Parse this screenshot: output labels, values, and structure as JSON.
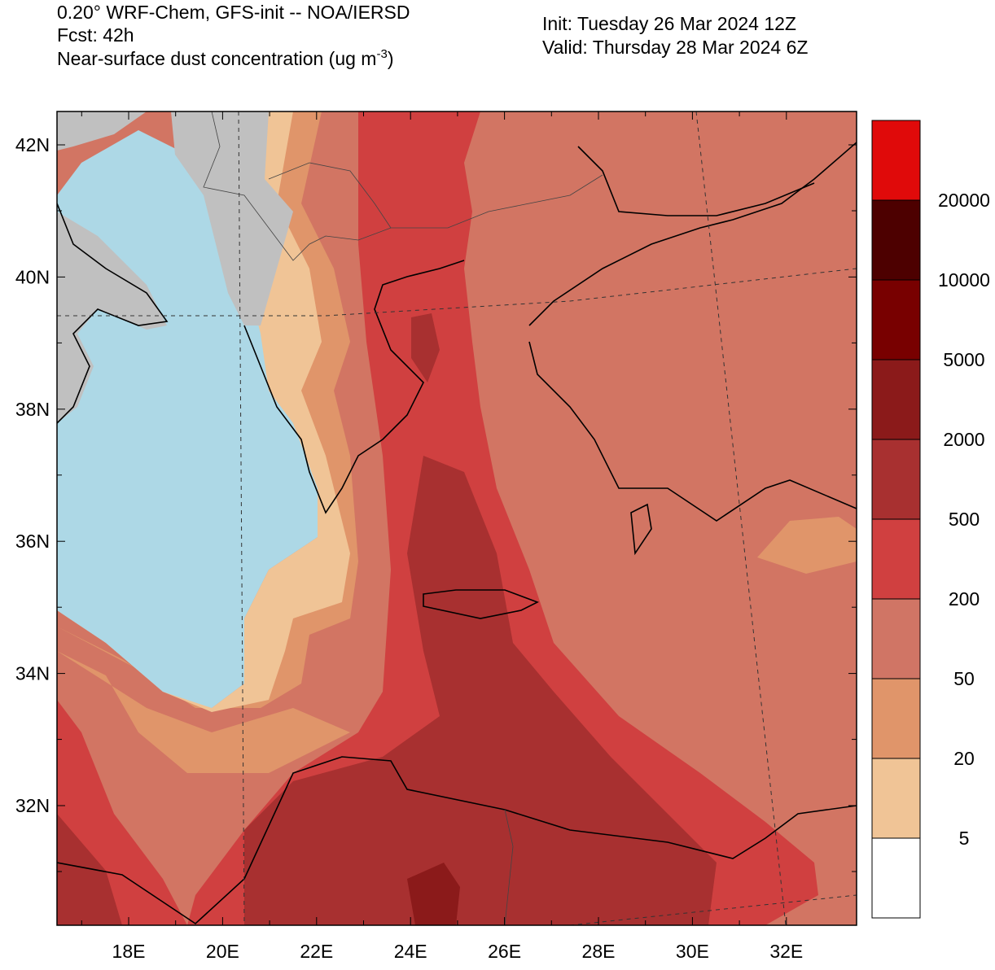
{
  "header": {
    "line1": "0.20° WRF-Chem, GFS-init -- NOA/IERSD",
    "line2": "Fcst: 42h",
    "line3": "Near-surface dust concentration (ug m",
    "line3_sup": "-3",
    "line3_end": ")",
    "init": "Init: Tuesday 26 Mar 2024  12Z",
    "valid": "Valid: Thursday 28 Mar 2024  6Z"
  },
  "map": {
    "lat_labels": [
      "42N",
      "40N",
      "38N",
      "36N",
      "34N",
      "32N"
    ],
    "lon_labels": [
      "18E",
      "20E",
      "22E",
      "24E",
      "26E",
      "28E",
      "30E",
      "32E"
    ]
  },
  "colorbar": {
    "levels": [
      5,
      20,
      50,
      200,
      500,
      2000,
      5000,
      10000,
      20000
    ],
    "colors": [
      "#ffffff",
      "#f0c496",
      "#e0956a",
      "#d07565",
      "#d04040",
      "#a83030",
      "#8b1a1a",
      "#780000",
      "#4d0000",
      "#e00a0a"
    ]
  }
}
